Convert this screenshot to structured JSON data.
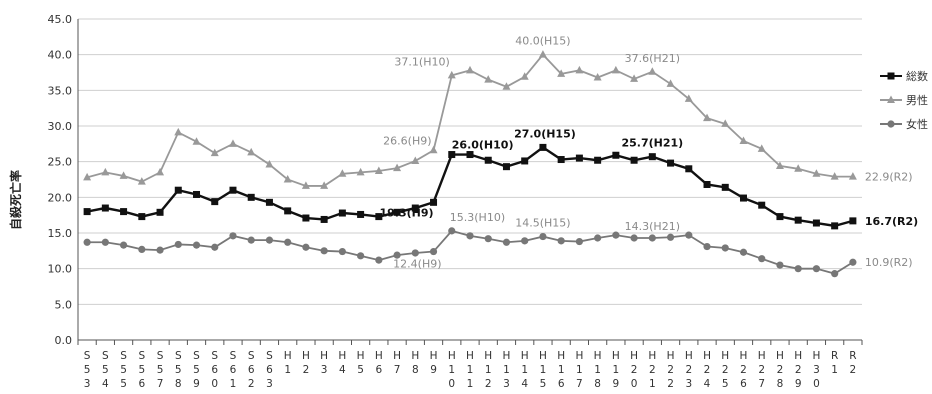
{
  "chart_data": {
    "type": "line",
    "ylabel": "自殺死亡率",
    "ylim": [
      0,
      45
    ],
    "yticks": [
      "0.0",
      "5.0",
      "10.0",
      "15.0",
      "20.0",
      "25.0",
      "30.0",
      "35.0",
      "40.0",
      "45.0"
    ],
    "grid": true,
    "legend_position": "right",
    "categories": [
      [
        "S",
        "5",
        "3"
      ],
      [
        "S",
        "5",
        "4"
      ],
      [
        "S",
        "5",
        "5"
      ],
      [
        "S",
        "5",
        "6"
      ],
      [
        "S",
        "5",
        "7"
      ],
      [
        "S",
        "5",
        "8"
      ],
      [
        "S",
        "5",
        "9"
      ],
      [
        "S",
        "6",
        "0"
      ],
      [
        "S",
        "6",
        "1"
      ],
      [
        "S",
        "6",
        "2"
      ],
      [
        "S",
        "6",
        "3"
      ],
      [
        "H",
        "1",
        ""
      ],
      [
        "H",
        "2",
        ""
      ],
      [
        "H",
        "3",
        ""
      ],
      [
        "H",
        "4",
        ""
      ],
      [
        "H",
        "5",
        ""
      ],
      [
        "H",
        "6",
        ""
      ],
      [
        "H",
        "7",
        ""
      ],
      [
        "H",
        "8",
        ""
      ],
      [
        "H",
        "9",
        ""
      ],
      [
        "H",
        "1",
        "0"
      ],
      [
        "H",
        "1",
        "1"
      ],
      [
        "H",
        "1",
        "2"
      ],
      [
        "H",
        "1",
        "3"
      ],
      [
        "H",
        "1",
        "4"
      ],
      [
        "H",
        "1",
        "5"
      ],
      [
        "H",
        "1",
        "6"
      ],
      [
        "H",
        "1",
        "7"
      ],
      [
        "H",
        "1",
        "8"
      ],
      [
        "H",
        "1",
        "9"
      ],
      [
        "H",
        "2",
        "0"
      ],
      [
        "H",
        "2",
        "1"
      ],
      [
        "H",
        "2",
        "2"
      ],
      [
        "H",
        "2",
        "3"
      ],
      [
        "H",
        "2",
        "4"
      ],
      [
        "H",
        "2",
        "5"
      ],
      [
        "H",
        "2",
        "6"
      ],
      [
        "H",
        "2",
        "7"
      ],
      [
        "H",
        "2",
        "8"
      ],
      [
        "H",
        "2",
        "9"
      ],
      [
        "H",
        "3",
        "0"
      ],
      [
        "R",
        "1",
        ""
      ],
      [
        "R",
        "2",
        ""
      ]
    ],
    "series": [
      {
        "name": "総数",
        "color": "#111111",
        "marker": "square",
        "values": [
          18.0,
          18.5,
          18.0,
          17.3,
          17.9,
          21.0,
          20.4,
          19.4,
          21.0,
          20.0,
          19.3,
          18.1,
          17.1,
          16.9,
          17.8,
          17.6,
          17.3,
          17.9,
          18.5,
          19.3,
          26.0,
          26.0,
          25.2,
          24.3,
          25.1,
          27.0,
          25.3,
          25.5,
          25.2,
          25.9,
          25.2,
          25.7,
          24.8,
          24.0,
          21.8,
          21.4,
          19.9,
          18.9,
          17.3,
          16.8,
          16.4,
          16.0,
          16.7
        ]
      },
      {
        "name": "男性",
        "color": "#999999",
        "marker": "triangle",
        "values": [
          22.8,
          23.5,
          23.0,
          22.2,
          23.5,
          29.1,
          27.8,
          26.2,
          27.5,
          26.3,
          24.6,
          22.5,
          21.6,
          21.6,
          23.3,
          23.5,
          23.7,
          24.1,
          25.1,
          26.6,
          37.1,
          37.8,
          36.5,
          35.5,
          36.9,
          40.0,
          37.3,
          37.8,
          36.8,
          37.8,
          36.6,
          37.6,
          35.9,
          33.8,
          31.1,
          30.3,
          27.9,
          26.8,
          24.4,
          24.0,
          23.3,
          22.9,
          22.9
        ]
      },
      {
        "name": "女性",
        "color": "#777777",
        "marker": "circle",
        "values": [
          13.7,
          13.7,
          13.3,
          12.7,
          12.6,
          13.4,
          13.3,
          13.0,
          14.6,
          14.0,
          14.0,
          13.7,
          13.0,
          12.5,
          12.4,
          11.8,
          11.2,
          11.9,
          12.2,
          12.4,
          15.3,
          14.6,
          14.2,
          13.7,
          13.9,
          14.5,
          13.9,
          13.8,
          14.3,
          14.7,
          14.3,
          14.3,
          14.4,
          14.7,
          13.1,
          12.9,
          12.3,
          11.4,
          10.5,
          10.0,
          10.0,
          9.3,
          10.9
        ]
      }
    ],
    "annotations": [
      {
        "text": "37.1(H10)",
        "series": 1,
        "index": 20,
        "dx": -2,
        "dy": -10,
        "anchor": "end"
      },
      {
        "text": "40.0(H15)",
        "series": 1,
        "index": 25,
        "dx": 0,
        "dy": -10,
        "anchor": "middle"
      },
      {
        "text": "37.6(H21)",
        "series": 1,
        "index": 31,
        "dx": 0,
        "dy": -10,
        "anchor": "middle"
      },
      {
        "text": "26.6(H9)",
        "series": 1,
        "index": 19,
        "dx": -2,
        "dy": -6,
        "anchor": "end"
      },
      {
        "text": "22.9(R2)",
        "series": 1,
        "index": 42,
        "dx": 12,
        "dy": 4,
        "anchor": "start"
      },
      {
        "text": "26.0(H10)",
        "series": 0,
        "index": 20,
        "dx": 0,
        "dy": -6,
        "anchor": "start"
      },
      {
        "text": "27.0(H15)",
        "series": 0,
        "index": 25,
        "dx": 2,
        "dy": -10,
        "anchor": "middle"
      },
      {
        "text": "25.7(H21)",
        "series": 0,
        "index": 31,
        "dx": 0,
        "dy": -10,
        "anchor": "middle"
      },
      {
        "text": "19.3(H9)",
        "series": 0,
        "index": 19,
        "dx": 0,
        "dy": 14,
        "anchor": "end"
      },
      {
        "text": "16.7(R2)",
        "series": 0,
        "index": 42,
        "dx": 12,
        "dy": 4,
        "anchor": "start"
      },
      {
        "text": "15.3(H10)",
        "series": 2,
        "index": 20,
        "dx": -2,
        "dy": -10,
        "anchor": "start"
      },
      {
        "text": "14.5(H15)",
        "series": 2,
        "index": 25,
        "dx": 0,
        "dy": -10,
        "anchor": "middle"
      },
      {
        "text": "14.3(H21)",
        "series": 2,
        "index": 31,
        "dx": 0,
        "dy": -8,
        "anchor": "middle"
      },
      {
        "text": "12.4(H9)",
        "series": 2,
        "index": 19,
        "dx": 8,
        "dy": 16,
        "anchor": "end"
      },
      {
        "text": "10.9(R2)",
        "series": 2,
        "index": 42,
        "dx": 12,
        "dy": 4,
        "anchor": "start"
      }
    ]
  }
}
